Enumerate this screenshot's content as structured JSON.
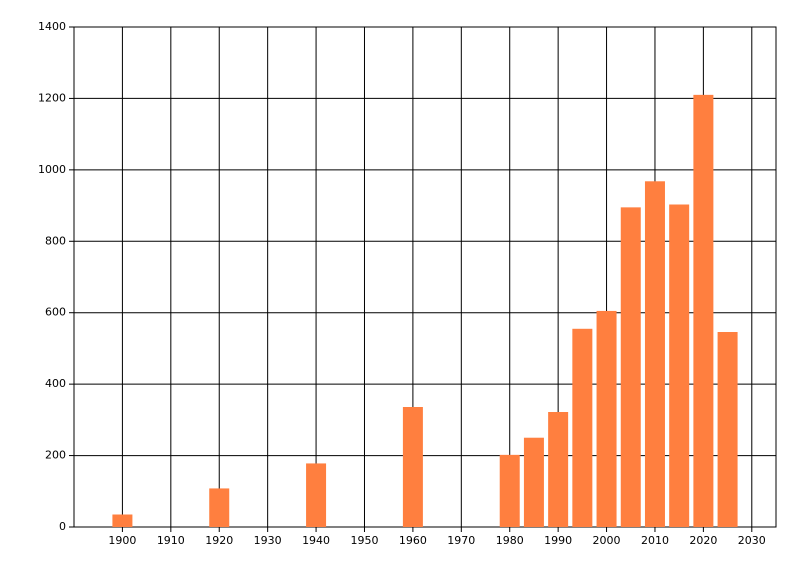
{
  "chart_data": {
    "type": "bar",
    "x": [
      1900,
      1920,
      1940,
      1960,
      1980,
      1985,
      1990,
      1995,
      2000,
      2005,
      2010,
      2015,
      2020,
      2025
    ],
    "values": [
      35,
      108,
      178,
      336,
      202,
      250,
      322,
      555,
      605,
      895,
      968,
      903,
      1210,
      546
    ],
    "color": "#ff7f3f",
    "xlim": [
      1890,
      2035
    ],
    "xticks": [
      1900,
      1910,
      1920,
      1930,
      1940,
      1950,
      1960,
      1970,
      1980,
      1990,
      2000,
      2010,
      2020,
      2030
    ],
    "ylim": [
      0,
      1400
    ],
    "yticks": [
      0,
      200,
      400,
      600,
      800,
      1000,
      1200,
      1400
    ],
    "grid": true
  }
}
